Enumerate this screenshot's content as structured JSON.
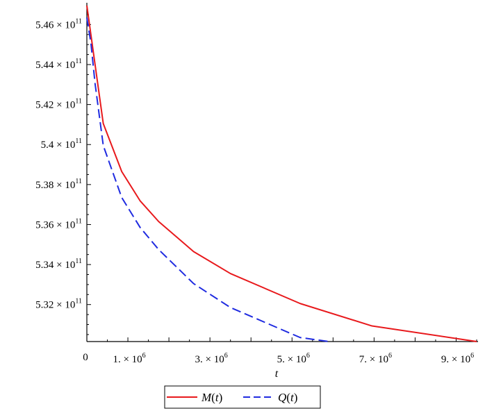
{
  "chart_data": {
    "type": "line",
    "xlabel": "t",
    "ylabel": "",
    "xlim": [
      0,
      9500000
    ],
    "ylim": [
      530150000000.0,
      546950000000.0
    ],
    "x_ticks": [
      {
        "value": 1000000,
        "mantissa": "1.",
        "exp": "6"
      },
      {
        "value": 3000000,
        "mantissa": "3.",
        "exp": "6"
      },
      {
        "value": 5000000,
        "mantissa": "5.",
        "exp": "6"
      },
      {
        "value": 7000000,
        "mantissa": "7.",
        "exp": "6"
      },
      {
        "value": 9000000,
        "mantissa": "9.",
        "exp": "6"
      }
    ],
    "origin_label": "0",
    "y_ticks": [
      {
        "value": 532000000000.0,
        "mantissa": "5.32",
        "exp": "11"
      },
      {
        "value": 534000000000.0,
        "mantissa": "5.34",
        "exp": "11"
      },
      {
        "value": 536000000000.0,
        "mantissa": "5.36",
        "exp": "11"
      },
      {
        "value": 538000000000.0,
        "mantissa": "5.38",
        "exp": "11"
      },
      {
        "value": 540000000000.0,
        "mantissa": "5.4",
        "exp": "11"
      },
      {
        "value": 542000000000.0,
        "mantissa": "5.42",
        "exp": "11"
      },
      {
        "value": 544000000000.0,
        "mantissa": "5.44",
        "exp": "11"
      },
      {
        "value": 546000000000.0,
        "mantissa": "5.46",
        "exp": "11"
      }
    ],
    "times_symbol": "×",
    "ten": "10",
    "series": [
      {
        "name": "M(t)",
        "legend_label": "M(t)",
        "color": "#e8191c",
        "dash": "solid",
        "x": [
          0,
          400000,
          850000,
          1300000,
          1750000,
          2600000,
          3500000,
          5200000,
          6950000,
          9500000
        ],
        "y": [
          546950000000.0,
          541050000000.0,
          538650000000.0,
          537180000000.0,
          536150000000.0,
          534650000000.0,
          533550000000.0,
          532050000000.0,
          530930000000.0,
          530150000000.0
        ]
      },
      {
        "name": "Q(t)",
        "legend_label": "Q(t)",
        "color": "#1f2be0",
        "dash": "dashed",
        "x": [
          0,
          100000,
          200000,
          400000,
          850000,
          1300000,
          1750000,
          2600000,
          3500000,
          5200000,
          5900000
        ],
        "y": [
          546350000000.0,
          545050000000.0,
          543050000000.0,
          539950000000.0,
          537350000000.0,
          535850000000.0,
          534750000000.0,
          533050000000.0,
          531850000000.0,
          530350000000.0,
          530150000000.0
        ]
      }
    ],
    "legend_position": "bottom-center",
    "grid": false
  }
}
